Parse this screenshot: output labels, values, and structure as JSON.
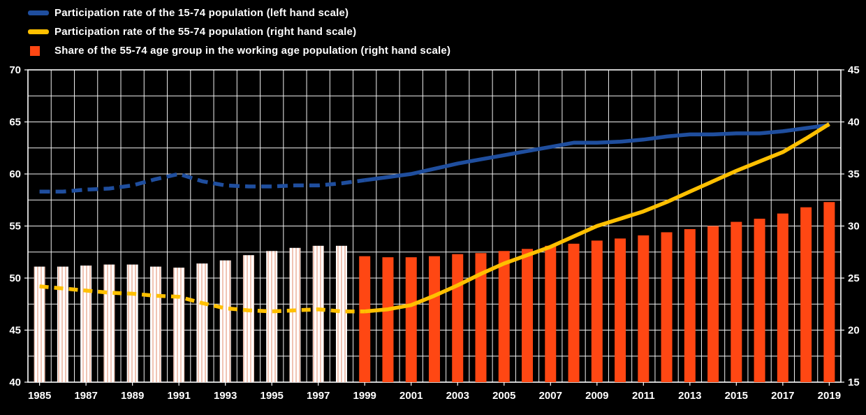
{
  "page": {
    "background": "#000000",
    "text_color": "#ffffff",
    "gridline_color": "#ffffff"
  },
  "legend": {
    "items": [
      {
        "label": "Participation rate of the 15-74 population (left hand scale)",
        "color": "#1f4e9e",
        "swatch": "line"
      },
      {
        "label": "Participation rate of the 55-74 population (right hand scale)",
        "color": "#ffc000",
        "swatch": "line"
      },
      {
        "label": "Share of the 55-74 age group in the working age population (right hand scale)",
        "color": "#ff4713",
        "swatch": "bar"
      }
    ]
  },
  "chart_data": {
    "type": "combo-bar-line",
    "title": "",
    "x": [
      1985,
      1986,
      1987,
      1988,
      1989,
      1990,
      1991,
      1992,
      1993,
      1994,
      1995,
      1996,
      1997,
      1998,
      1999,
      2000,
      2001,
      2002,
      2003,
      2004,
      2005,
      2006,
      2007,
      2008,
      2009,
      2010,
      2011,
      2012,
      2013,
      2014,
      2015,
      2016,
      2017,
      2018,
      2019
    ],
    "x_tick_labels": [
      "1985",
      "1987",
      "1989",
      "1991",
      "1993",
      "1995",
      "1997",
      "1999",
      "2001",
      "2003",
      "2005",
      "2007",
      "2009",
      "2011",
      "2013",
      "2015",
      "2017",
      "2019"
    ],
    "left_axis": {
      "min": 40,
      "max": 70,
      "tick_step": 5,
      "ticks": [
        "70",
        "65",
        "60",
        "55",
        "50",
        "45",
        "40"
      ]
    },
    "right_axis": {
      "min": 15,
      "max": 45,
      "tick_step": 5,
      "ticks": [
        "45",
        "40",
        "35",
        "30",
        "25",
        "20",
        "15"
      ]
    },
    "gridlines": {
      "horizontal_step": 2.5,
      "vertical": "yearly",
      "on": true
    },
    "legend_position": "top-left",
    "series": [
      {
        "name": "Participation rate of the 15-74 population",
        "axis": "left",
        "type": "line",
        "color": "#1f4e9e",
        "dashed_until_year": 1999,
        "values": [
          58.3,
          58.3,
          58.5,
          58.6,
          58.9,
          59.5,
          60.0,
          59.3,
          58.9,
          58.8,
          58.8,
          58.9,
          58.9,
          59.1,
          59.4,
          59.7,
          60.0,
          60.5,
          61.0,
          61.4,
          61.8,
          62.2,
          62.6,
          63.0,
          63.0,
          63.1,
          63.3,
          63.6,
          63.8,
          63.8,
          63.9,
          63.9,
          64.1,
          64.4,
          64.7
        ]
      },
      {
        "name": "Participation rate of the 55-74 population",
        "axis": "right",
        "type": "line",
        "color": "#ffc000",
        "dashed_until_year": 1999,
        "values": [
          24.2,
          24.0,
          23.8,
          23.6,
          23.5,
          23.3,
          23.2,
          22.6,
          22.1,
          21.9,
          21.8,
          21.9,
          22.0,
          21.8,
          21.8,
          22.0,
          22.4,
          23.3,
          24.3,
          25.4,
          26.4,
          27.2,
          28.0,
          29.0,
          30.0,
          30.7,
          31.4,
          32.3,
          33.3,
          34.3,
          35.3,
          36.2,
          37.1,
          38.4,
          39.8
        ]
      },
      {
        "name": "Share of the 55-74 age group in the working age population",
        "axis": "right",
        "type": "bar",
        "color": "#ff4713",
        "hatched_until_year": 1998,
        "hatch_colors": [
          "#ffffff",
          "#f0c4b4"
        ],
        "values": [
          26.1,
          26.1,
          26.2,
          26.3,
          26.3,
          26.1,
          26.0,
          26.4,
          26.7,
          27.2,
          27.6,
          27.9,
          28.1,
          28.1,
          27.1,
          27.0,
          27.0,
          27.1,
          27.3,
          27.4,
          27.6,
          27.8,
          28.1,
          28.3,
          28.6,
          28.8,
          29.1,
          29.4,
          29.7,
          30.0,
          30.4,
          30.7,
          31.2,
          31.8,
          32.3
        ]
      }
    ]
  }
}
